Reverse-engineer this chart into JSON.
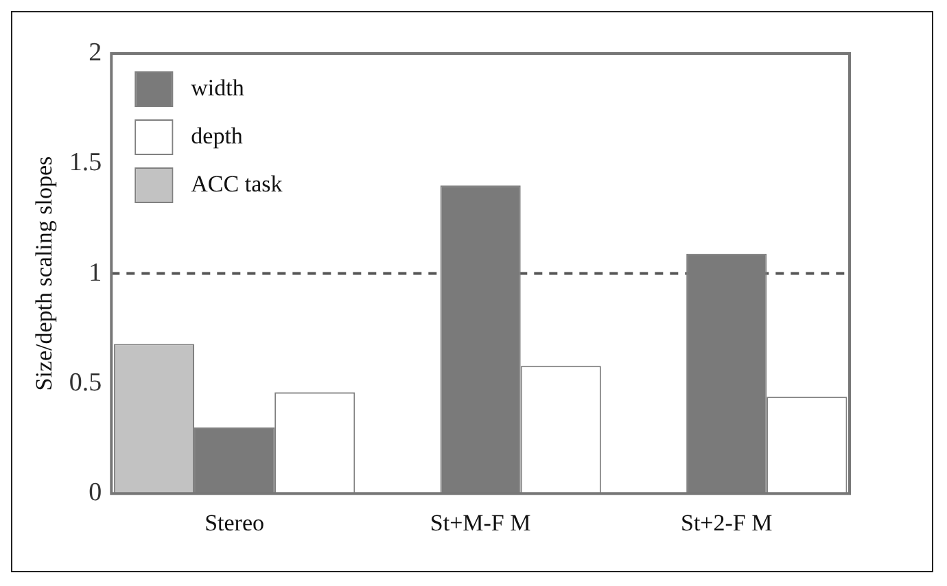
{
  "chart_data": {
    "type": "bar",
    "ylabel": "Size/depth scaling slopes",
    "categories": [
      "Stereo",
      "St+M-F M",
      "St+2-F M"
    ],
    "series": [
      {
        "name": "width",
        "color": "#7a7a7a",
        "values": [
          0.3,
          1.4,
          1.09
        ]
      },
      {
        "name": "depth",
        "color": "#ffffff",
        "values": [
          0.46,
          0.58,
          0.44
        ]
      },
      {
        "name": "ACC task",
        "color": "#c2c2c2",
        "values": [
          0.68,
          null,
          null
        ]
      }
    ],
    "ylim": [
      0,
      2
    ],
    "yticks": [
      0,
      0.5,
      1,
      1.5,
      2
    ],
    "grid": false,
    "legend": "top left",
    "ref_lines": [
      {
        "axis": "y",
        "value": 1,
        "color": "#555555",
        "line_style": "dashed"
      }
    ]
  }
}
